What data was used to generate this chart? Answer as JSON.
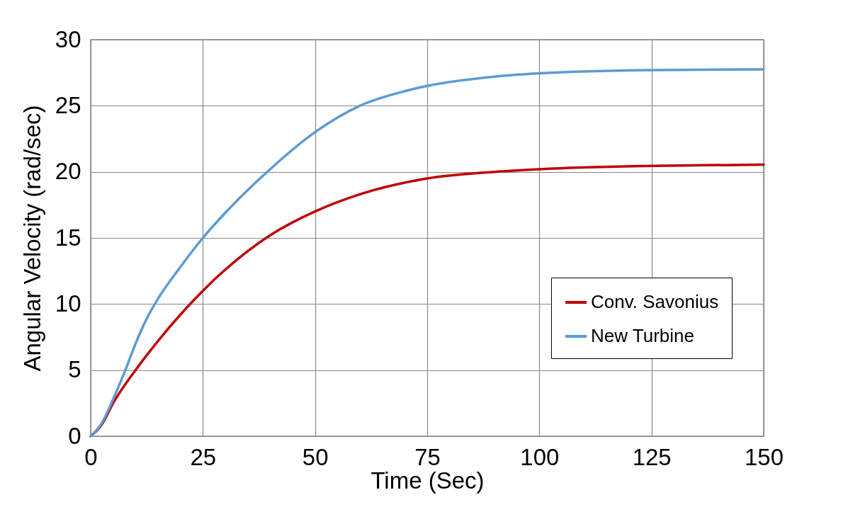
{
  "chart_data": {
    "type": "line",
    "xlabel": "Time (Sec)",
    "ylabel": "Angular Velocity (rad/sec)",
    "xlim": [
      0,
      150
    ],
    "xticks": [
      0,
      25,
      50,
      75,
      100,
      125,
      150
    ],
    "ylim": [
      0,
      30
    ],
    "yticks": [
      0,
      5,
      10,
      15,
      20,
      25,
      30
    ],
    "grid": true,
    "legend": "right",
    "marker": "none",
    "line_style": "solid",
    "series": [
      {
        "name": "Conv. Savonius",
        "color": "#c00000",
        "x": [
          0,
          2.5,
          5,
          10,
          15,
          20,
          25,
          30,
          40,
          50,
          60,
          75,
          90,
          100,
          125,
          150
        ],
        "values": [
          0,
          0.9,
          2.5,
          5,
          7.2,
          9.2,
          11,
          12.6,
          15.2,
          17,
          18.3,
          19.5,
          20,
          20.2,
          20.45,
          20.55
        ]
      },
      {
        "name": "New Turbine",
        "color": "#5b9bd5",
        "x": [
          0,
          2.5,
          5,
          7.5,
          10,
          12.5,
          15,
          20,
          25,
          30,
          40,
          50,
          60,
          70,
          75,
          90,
          100,
          125,
          150
        ],
        "values": [
          0,
          1,
          2.8,
          4.8,
          7,
          8.9,
          10.4,
          12.8,
          15,
          16.9,
          20.2,
          23,
          25,
          26.1,
          26.5,
          27.2,
          27.45,
          27.7,
          27.75
        ]
      }
    ]
  }
}
